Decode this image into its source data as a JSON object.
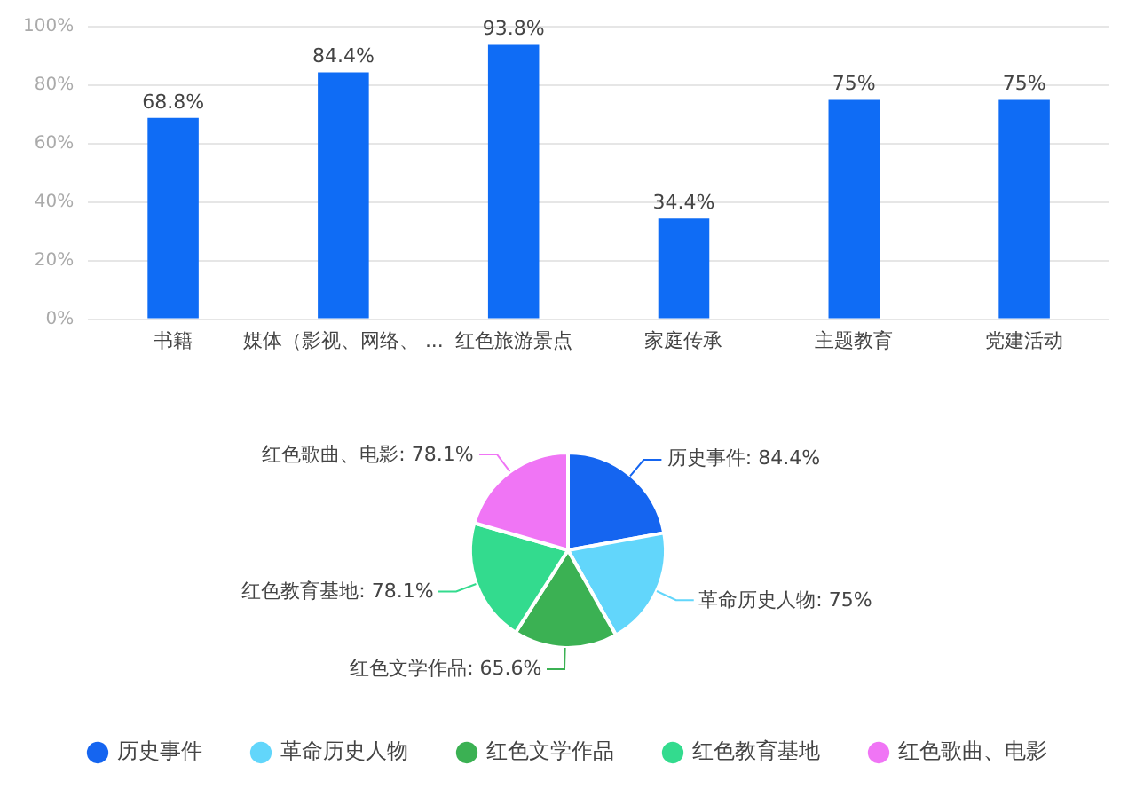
{
  "chart_data": [
    {
      "type": "bar",
      "categories": [
        "书籍",
        "媒体（影视、网络、 ...",
        "红色旅游景点",
        "家庭传承",
        "主题教育",
        "党建活动"
      ],
      "values": [
        68.8,
        84.4,
        93.8,
        34.4,
        75,
        75
      ],
      "value_labels": [
        "68.8%",
        "84.4%",
        "93.8%",
        "34.4%",
        "75%",
        "75%"
      ],
      "color": "#0f6cf5",
      "ylim": [
        0,
        100
      ],
      "yticks": [
        {
          "value": 0,
          "label": "0%"
        },
        {
          "value": 20,
          "label": "20%"
        },
        {
          "value": 40,
          "label": "40%"
        },
        {
          "value": 60,
          "label": "60%"
        },
        {
          "value": 80,
          "label": "80%"
        },
        {
          "value": 100,
          "label": "100%"
        }
      ],
      "grid": "y"
    },
    {
      "type": "pie",
      "categories": [
        "历史事件",
        "革命历史人物",
        "红色文学作品",
        "红色教育基地",
        "红色歌曲、电影"
      ],
      "values": [
        84.4,
        75,
        65.6,
        78.1,
        78.1
      ],
      "value_labels": [
        "历史事件: 84.4%",
        "革命历史人物: 75%",
        "红色文学作品: 65.6%",
        "红色教育基地: 78.1%",
        "红色歌曲、电影: 78.1%"
      ],
      "colors": [
        "#1565f0",
        "#62d6fb",
        "#3bb153",
        "#33db8e",
        "#f075f5"
      ],
      "legend": "bottom"
    }
  ]
}
